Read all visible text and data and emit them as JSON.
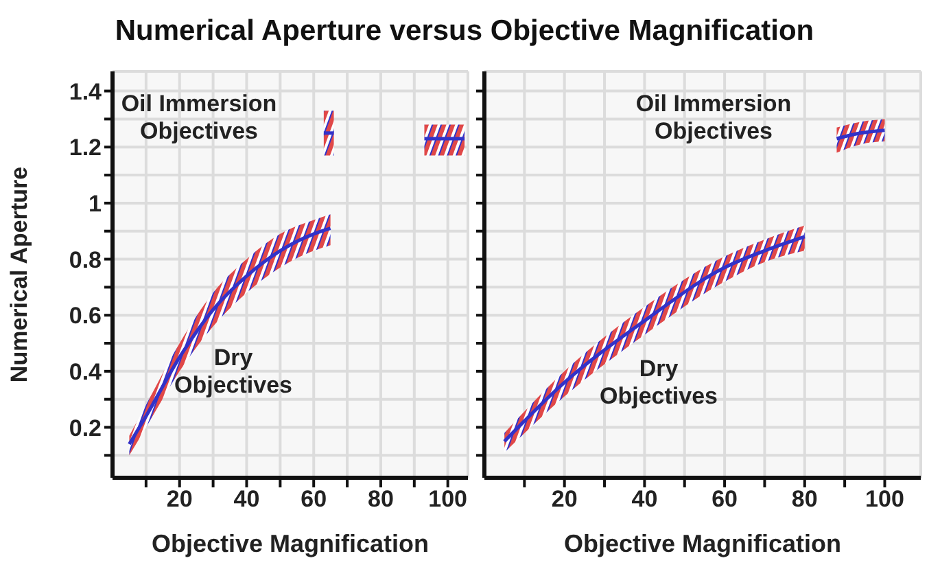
{
  "chart_data": [
    {
      "type": "line",
      "title": "Numerical Aperture versus Objective Magnification",
      "xlabel": "Objective Magnification",
      "ylabel": "Numerical Aperture",
      "xlim": [
        0,
        106
      ],
      "ylim": [
        0.02,
        1.47
      ],
      "xticks": [
        {
          "value": 10,
          "label": null
        },
        20,
        {
          "value": 30,
          "label": null
        },
        40,
        {
          "value": 50,
          "label": null
        },
        60,
        {
          "value": 70,
          "label": null
        },
        80,
        {
          "value": 90,
          "label": null
        },
        100
      ],
      "yticks": [
        {
          "value": 0.1,
          "label": null
        },
        0.2,
        {
          "value": 0.3,
          "label": null
        },
        0.4,
        {
          "value": 0.5,
          "label": null
        },
        0.6,
        {
          "value": 0.7,
          "label": null
        },
        0.8,
        {
          "value": 0.9,
          "label": null
        },
        1.0,
        {
          "value": 1.1,
          "label": null
        },
        1.2,
        {
          "value": 1.3,
          "label": null
        },
        1.4
      ],
      "grid": true,
      "marker": "none",
      "series": [
        {
          "color": "#3232c8",
          "x": [
            5,
            10,
            20,
            30,
            40,
            50,
            60,
            65
          ],
          "values": [
            0.14,
            0.24,
            0.45,
            0.62,
            0.74,
            0.83,
            0.89,
            0.91
          ],
          "lower": [
            0.1,
            0.2,
            0.4,
            0.56,
            0.68,
            0.77,
            0.83,
            0.85
          ],
          "upper": [
            0.17,
            0.28,
            0.5,
            0.68,
            0.8,
            0.89,
            0.94,
            0.96
          ]
        },
        {
          "color": "#3232c8",
          "x": [
            63,
            66
          ],
          "values": [
            1.25,
            1.25
          ],
          "lower": [
            1.17,
            1.17
          ],
          "upper": [
            1.33,
            1.33
          ]
        },
        {
          "color": "#3232c8",
          "x": [
            93,
            105
          ],
          "values": [
            1.23,
            1.23
          ],
          "lower": [
            1.17,
            1.17
          ],
          "upper": [
            1.28,
            1.28
          ]
        }
      ],
      "annotations": [
        "Oil Immersion Objectives",
        "Dry Objectives"
      ]
    },
    {
      "type": "line",
      "xlabel": "Objective Magnification",
      "xlim": [
        0,
        109
      ],
      "ylim": [
        0.02,
        1.47
      ],
      "tick_labels": "x",
      "xticks": [
        {
          "value": 10,
          "label": null
        },
        20,
        {
          "value": 30,
          "label": null
        },
        40,
        {
          "value": 50,
          "label": null
        },
        60,
        {
          "value": 70,
          "label": null
        },
        80,
        {
          "value": 90,
          "label": null
        },
        100
      ],
      "yticks": [
        {
          "value": 0.1,
          "label": null
        },
        {
          "value": 0.2,
          "label": null
        },
        {
          "value": 0.3,
          "label": null
        },
        {
          "value": 0.4,
          "label": null
        },
        {
          "value": 0.5,
          "label": null
        },
        {
          "value": 0.6,
          "label": null
        },
        {
          "value": 0.7,
          "label": null
        },
        {
          "value": 0.8,
          "label": null
        },
        {
          "value": 0.9,
          "label": null
        },
        {
          "value": 1.0,
          "label": null
        },
        {
          "value": 1.1,
          "label": null
        },
        {
          "value": 1.2,
          "label": null
        },
        {
          "value": 1.3,
          "label": null
        },
        {
          "value": 1.4,
          "label": null
        }
      ],
      "grid": true,
      "marker": "none",
      "series": [
        {
          "color": "#3232c8",
          "x": [
            5,
            20,
            40,
            60,
            70,
            80
          ],
          "values": [
            0.15,
            0.36,
            0.58,
            0.77,
            0.83,
            0.88
          ],
          "lower": [
            0.11,
            0.31,
            0.53,
            0.72,
            0.79,
            0.83
          ],
          "upper": [
            0.18,
            0.4,
            0.63,
            0.81,
            0.87,
            0.92
          ]
        },
        {
          "color": "#3232c8",
          "x": [
            88,
            94,
            100
          ],
          "values": [
            1.23,
            1.25,
            1.26
          ],
          "lower": [
            1.18,
            1.21,
            1.22
          ],
          "upper": [
            1.27,
            1.29,
            1.3
          ]
        }
      ],
      "annotations": [
        "Oil Immersion Objectives",
        "Dry Objectives"
      ]
    }
  ]
}
